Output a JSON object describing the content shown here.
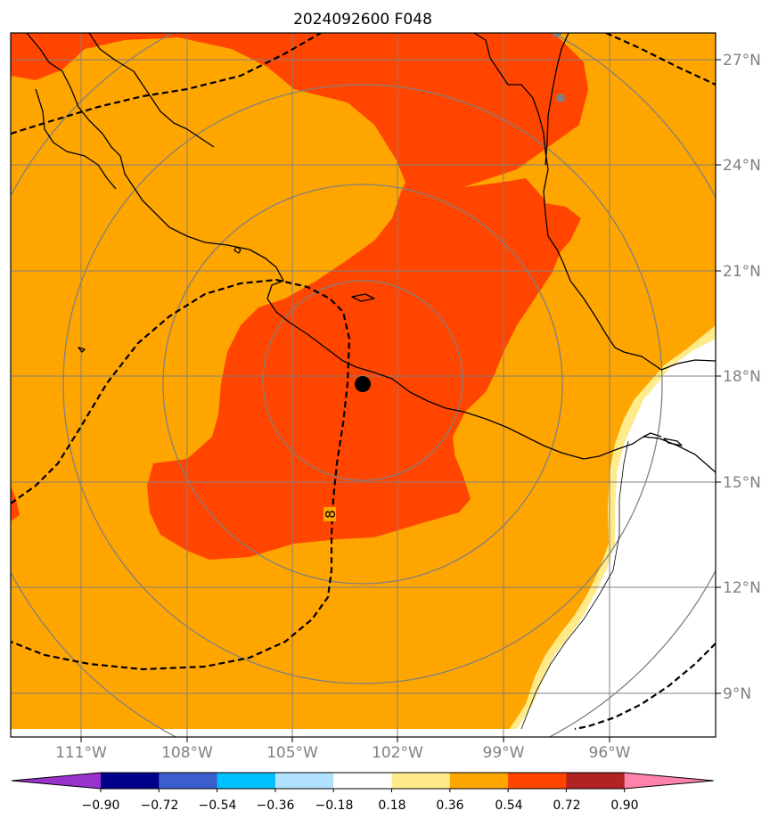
{
  "title": "2024092600 F048",
  "lon_labels": [
    "111°W",
    "108°W",
    "105°W",
    "102°W",
    "99°W",
    "96°W"
  ],
  "lat_labels": [
    "27°N",
    "24°N",
    "21°N",
    "18°N",
    "15°N",
    "12°N",
    "9°N"
  ],
  "contour_label": "8",
  "colorbar": {
    "tick_labels": [
      "−0.90",
      "−0.72",
      "−0.54",
      "−0.36",
      "−0.18",
      "0.18",
      "0.36",
      "0.54",
      "0.72",
      "0.90"
    ],
    "colors": [
      "#9932cc",
      "#00008b",
      "#3a5fcd",
      "#00bfff",
      "#b0e2ff",
      "#ffffff",
      "#ffeb8a",
      "#ffa500",
      "#ff4500",
      "#b22222",
      "#ff82ab"
    ]
  },
  "colors": {
    "low_band": "#ffeb8a",
    "mid_band": "#ffa500",
    "high_band": "#ff4500",
    "ocean_white": "#ffffff",
    "grid": "#808080",
    "label": "#808080"
  },
  "center_marker": "storm-center"
}
